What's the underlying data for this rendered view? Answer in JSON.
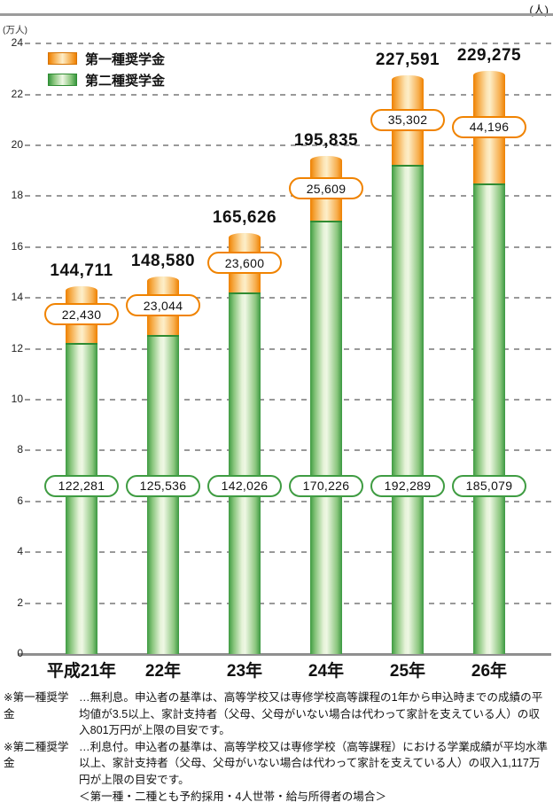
{
  "header": {
    "top_unit": "(人)"
  },
  "chart_data": {
    "type": "bar",
    "subtype": "stacked-cylinder-columns",
    "title": "",
    "unit_label": "(万人)",
    "categories": [
      "平成21年",
      "22年",
      "23年",
      "24年",
      "25年",
      "26年"
    ],
    "series": [
      {
        "name": "第一種奨学金",
        "color": "#f08300",
        "values": [
          22430,
          23044,
          23600,
          25609,
          35302,
          44196
        ]
      },
      {
        "name": "第二種奨学金",
        "color": "#3f9c42",
        "values": [
          122281,
          125536,
          142026,
          170226,
          192289,
          185079
        ]
      }
    ],
    "totals": [
      144711,
      148580,
      165626,
      195835,
      227591,
      229275
    ],
    "ylim": [
      0,
      24
    ],
    "ytick_step": 2,
    "yticks": [
      0,
      2,
      4,
      6,
      8,
      10,
      12,
      14,
      16,
      18,
      20,
      22,
      24
    ],
    "grid": "dashed horizontal",
    "legend_position": "top-left"
  },
  "colors": {
    "accent_orange": "#f08300",
    "accent_green": "#3f9c42",
    "grid_gray": "#999999",
    "axis_gray": "#8f8f8f",
    "text": "#111111"
  },
  "footnotes": [
    {
      "label": "※第一種奨学金",
      "text": "…無利息。申込者の基準は、高等学校又は専修学校高等課程の1年から申込時までの成績の平均値が3.5以上、家計支持者（父母、父母がいない場合は代わって家計を支えている人）の収入801万円が上限の目安です。"
    },
    {
      "label": "※第二種奨学金",
      "text": "…利息付。申込者の基準は、高等学校又は専修学校（高等課程）における学業成績が平均水準以上、家計支持者（父母、父母がいない場合は代わって家計を支えている人）の収入1,117万円が上限の目安です。",
      "sub": "＜第一種・二種とも予約採用・4人世帯・給与所得者の場合＞"
    }
  ]
}
